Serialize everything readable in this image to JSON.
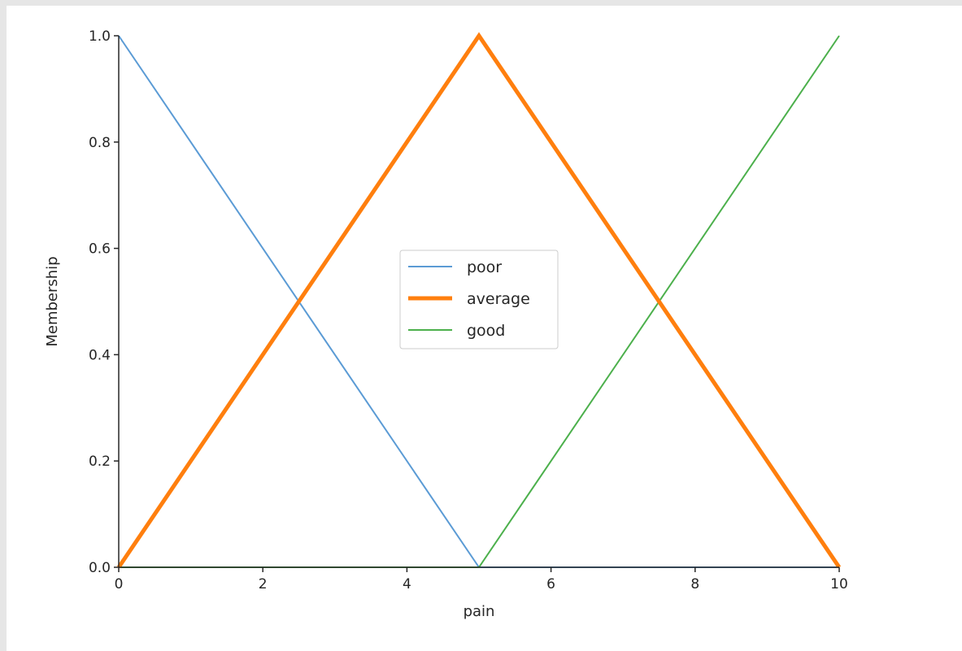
{
  "chart_data": {
    "type": "line",
    "xlabel": "pain",
    "ylabel": "Membership",
    "xlim": [
      0,
      10
    ],
    "ylim": [
      0,
      1
    ],
    "xticks": [
      0,
      2,
      4,
      6,
      8,
      10
    ],
    "yticks": [
      0.0,
      0.2,
      0.4,
      0.6,
      0.8,
      1.0
    ],
    "xtick_labels": [
      "0",
      "2",
      "4",
      "6",
      "8",
      "10"
    ],
    "ytick_labels": [
      "0.0",
      "0.2",
      "0.4",
      "0.6",
      "0.8",
      "1.0"
    ],
    "legend_position": "center",
    "grid": false,
    "series": [
      {
        "name": "poor",
        "color": "#5b9bd5",
        "emphasis": false,
        "x": [
          0,
          5,
          10
        ],
        "y": [
          1,
          0,
          0
        ]
      },
      {
        "name": "average",
        "color": "#ff7f0e",
        "emphasis": true,
        "x": [
          0,
          5,
          10
        ],
        "y": [
          0,
          1,
          0
        ]
      },
      {
        "name": "good",
        "color": "#4cb04c",
        "emphasis": false,
        "x": [
          0,
          5,
          10
        ],
        "y": [
          0,
          0,
          1
        ]
      }
    ]
  }
}
